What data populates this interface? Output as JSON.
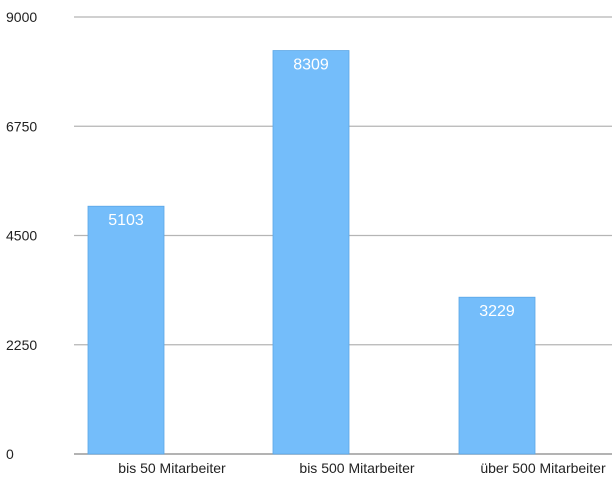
{
  "chart_data": {
    "type": "bar",
    "categories": [
      "bis 50 Mitarbeiter",
      "bis 500 Mitarbeiter",
      "über 500 Mitarbeiter"
    ],
    "values": [
      5103,
      8309,
      3229
    ],
    "data_labels": [
      "5103",
      "8309",
      "3229"
    ],
    "title": "",
    "xlabel": "",
    "ylabel": "",
    "ylim": [
      0,
      9000
    ],
    "yticks": [
      0,
      2250,
      4500,
      6750,
      9000
    ],
    "ytick_labels": [
      "0",
      "2250",
      "4500",
      "6750",
      "9000"
    ],
    "grid": true,
    "legend": "none",
    "colors": {
      "bar": "#74bdfa",
      "bar_border": "#5aa6e6",
      "grid": "#b5b5b5",
      "axis": "#9a9a9a"
    }
  }
}
